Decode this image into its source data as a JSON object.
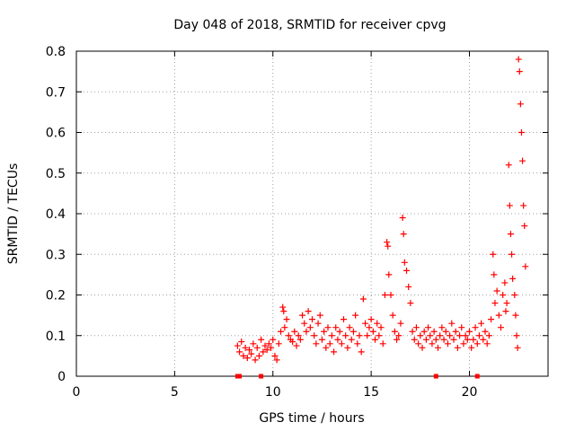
{
  "chart_data": {
    "type": "scatter",
    "title": "Day 048 of 2018, SRMTID for receiver cpvg",
    "xlabel": "GPS time / hours",
    "ylabel": "SRMTID / TECUs",
    "xlim": [
      0,
      24
    ],
    "ylim": [
      0,
      0.8
    ],
    "xticks": [
      0,
      5,
      10,
      15,
      20
    ],
    "yticks": [
      0,
      0.1,
      0.2,
      0.3,
      0.4,
      0.5,
      0.6,
      0.7,
      0.8
    ],
    "xtick_labels": [
      "0",
      "5",
      "10",
      "15",
      "20"
    ],
    "ytick_labels": [
      "0",
      "0.1",
      "0.2",
      "0.3",
      "0.4",
      "0.5",
      "0.6",
      "0.7",
      "0.8"
    ],
    "grid": true,
    "marker": "plus",
    "color": "#ff0000",
    "series": [
      {
        "name": "SRMTID",
        "points": [
          [
            8.2,
            0.075
          ],
          [
            8.3,
            0.06
          ],
          [
            8.4,
            0.085
          ],
          [
            8.5,
            0.05
          ],
          [
            8.6,
            0.07
          ],
          [
            8.7,
            0.045
          ],
          [
            8.8,
            0.065
          ],
          [
            8.9,
            0.055
          ],
          [
            9.0,
            0.08
          ],
          [
            9.1,
            0.04
          ],
          [
            9.2,
            0.07
          ],
          [
            9.3,
            0.05
          ],
          [
            9.4,
            0.09
          ],
          [
            9.5,
            0.06
          ],
          [
            9.6,
            0.075
          ],
          [
            9.7,
            0.065
          ],
          [
            9.8,
            0.08
          ],
          [
            9.9,
            0.07
          ],
          [
            10.0,
            0.09
          ],
          [
            10.1,
            0.05
          ],
          [
            10.2,
            0.04
          ],
          [
            10.3,
            0.08
          ],
          [
            10.4,
            0.11
          ],
          [
            10.5,
            0.17
          ],
          [
            10.55,
            0.16
          ],
          [
            10.6,
            0.12
          ],
          [
            10.7,
            0.14
          ],
          [
            10.8,
            0.1
          ],
          [
            10.9,
            0.09
          ],
          [
            11.0,
            0.085
          ],
          [
            11.1,
            0.11
          ],
          [
            11.2,
            0.075
          ],
          [
            11.3,
            0.1
          ],
          [
            11.4,
            0.09
          ],
          [
            11.5,
            0.15
          ],
          [
            11.6,
            0.13
          ],
          [
            11.7,
            0.11
          ],
          [
            11.8,
            0.16
          ],
          [
            11.9,
            0.12
          ],
          [
            12.0,
            0.14
          ],
          [
            12.1,
            0.1
          ],
          [
            12.2,
            0.08
          ],
          [
            12.3,
            0.13
          ],
          [
            12.4,
            0.15
          ],
          [
            12.5,
            0.09
          ],
          [
            12.6,
            0.11
          ],
          [
            12.7,
            0.07
          ],
          [
            12.8,
            0.12
          ],
          [
            12.9,
            0.08
          ],
          [
            13.0,
            0.1
          ],
          [
            13.1,
            0.06
          ],
          [
            13.2,
            0.12
          ],
          [
            13.3,
            0.09
          ],
          [
            13.4,
            0.11
          ],
          [
            13.5,
            0.08
          ],
          [
            13.6,
            0.14
          ],
          [
            13.7,
            0.1
          ],
          [
            13.8,
            0.07
          ],
          [
            13.9,
            0.12
          ],
          [
            14.0,
            0.09
          ],
          [
            14.1,
            0.11
          ],
          [
            14.2,
            0.15
          ],
          [
            14.3,
            0.08
          ],
          [
            14.4,
            0.1
          ],
          [
            14.5,
            0.06
          ],
          [
            14.6,
            0.19
          ],
          [
            14.7,
            0.13
          ],
          [
            14.8,
            0.1
          ],
          [
            14.9,
            0.12
          ],
          [
            15.0,
            0.14
          ],
          [
            15.1,
            0.11
          ],
          [
            15.2,
            0.09
          ],
          [
            15.3,
            0.13
          ],
          [
            15.4,
            0.1
          ],
          [
            15.5,
            0.12
          ],
          [
            15.6,
            0.08
          ],
          [
            15.7,
            0.2
          ],
          [
            15.8,
            0.33
          ],
          [
            15.85,
            0.32
          ],
          [
            15.9,
            0.25
          ],
          [
            16.0,
            0.2
          ],
          [
            16.1,
            0.15
          ],
          [
            16.2,
            0.11
          ],
          [
            16.3,
            0.09
          ],
          [
            16.4,
            0.1
          ],
          [
            16.5,
            0.13
          ],
          [
            16.6,
            0.39
          ],
          [
            16.65,
            0.35
          ],
          [
            16.7,
            0.28
          ],
          [
            16.8,
            0.26
          ],
          [
            16.9,
            0.22
          ],
          [
            17.0,
            0.18
          ],
          [
            17.1,
            0.11
          ],
          [
            17.2,
            0.09
          ],
          [
            17.3,
            0.12
          ],
          [
            17.4,
            0.08
          ],
          [
            17.5,
            0.1
          ],
          [
            17.6,
            0.07
          ],
          [
            17.7,
            0.11
          ],
          [
            17.8,
            0.09
          ],
          [
            17.9,
            0.12
          ],
          [
            18.0,
            0.1
          ],
          [
            18.1,
            0.08
          ],
          [
            18.2,
            0.11
          ],
          [
            18.3,
            0.09
          ],
          [
            18.4,
            0.07
          ],
          [
            18.5,
            0.1
          ],
          [
            18.6,
            0.12
          ],
          [
            18.7,
            0.09
          ],
          [
            18.8,
            0.11
          ],
          [
            18.9,
            0.08
          ],
          [
            19.0,
            0.1
          ],
          [
            19.1,
            0.13
          ],
          [
            19.2,
            0.09
          ],
          [
            19.3,
            0.11
          ],
          [
            19.4,
            0.07
          ],
          [
            19.5,
            0.1
          ],
          [
            19.6,
            0.12
          ],
          [
            19.7,
            0.08
          ],
          [
            19.8,
            0.1
          ],
          [
            19.9,
            0.09
          ],
          [
            20.0,
            0.11
          ],
          [
            20.1,
            0.07
          ],
          [
            20.2,
            0.09
          ],
          [
            20.3,
            0.12
          ],
          [
            20.4,
            0.08
          ],
          [
            20.5,
            0.1
          ],
          [
            20.6,
            0.13
          ],
          [
            20.7,
            0.09
          ],
          [
            20.8,
            0.11
          ],
          [
            20.9,
            0.08
          ],
          [
            21.0,
            0.1
          ],
          [
            21.1,
            0.14
          ],
          [
            21.2,
            0.3
          ],
          [
            21.25,
            0.25
          ],
          [
            21.3,
            0.18
          ],
          [
            21.4,
            0.21
          ],
          [
            21.5,
            0.15
          ],
          [
            21.6,
            0.12
          ],
          [
            21.7,
            0.2
          ],
          [
            21.8,
            0.23
          ],
          [
            21.85,
            0.16
          ],
          [
            21.9,
            0.18
          ],
          [
            22.0,
            0.52
          ],
          [
            22.05,
            0.42
          ],
          [
            22.1,
            0.35
          ],
          [
            22.15,
            0.3
          ],
          [
            22.2,
            0.24
          ],
          [
            22.3,
            0.2
          ],
          [
            22.35,
            0.15
          ],
          [
            22.4,
            0.1
          ],
          [
            22.45,
            0.07
          ],
          [
            22.5,
            0.78
          ],
          [
            22.55,
            0.75
          ],
          [
            22.6,
            0.67
          ],
          [
            22.65,
            0.6
          ],
          [
            22.7,
            0.53
          ],
          [
            22.75,
            0.42
          ],
          [
            22.8,
            0.37
          ],
          [
            22.85,
            0.27
          ]
        ]
      }
    ],
    "bottom_markers": [
      8.2,
      8.3,
      9.4,
      18.3,
      20.4
    ]
  }
}
